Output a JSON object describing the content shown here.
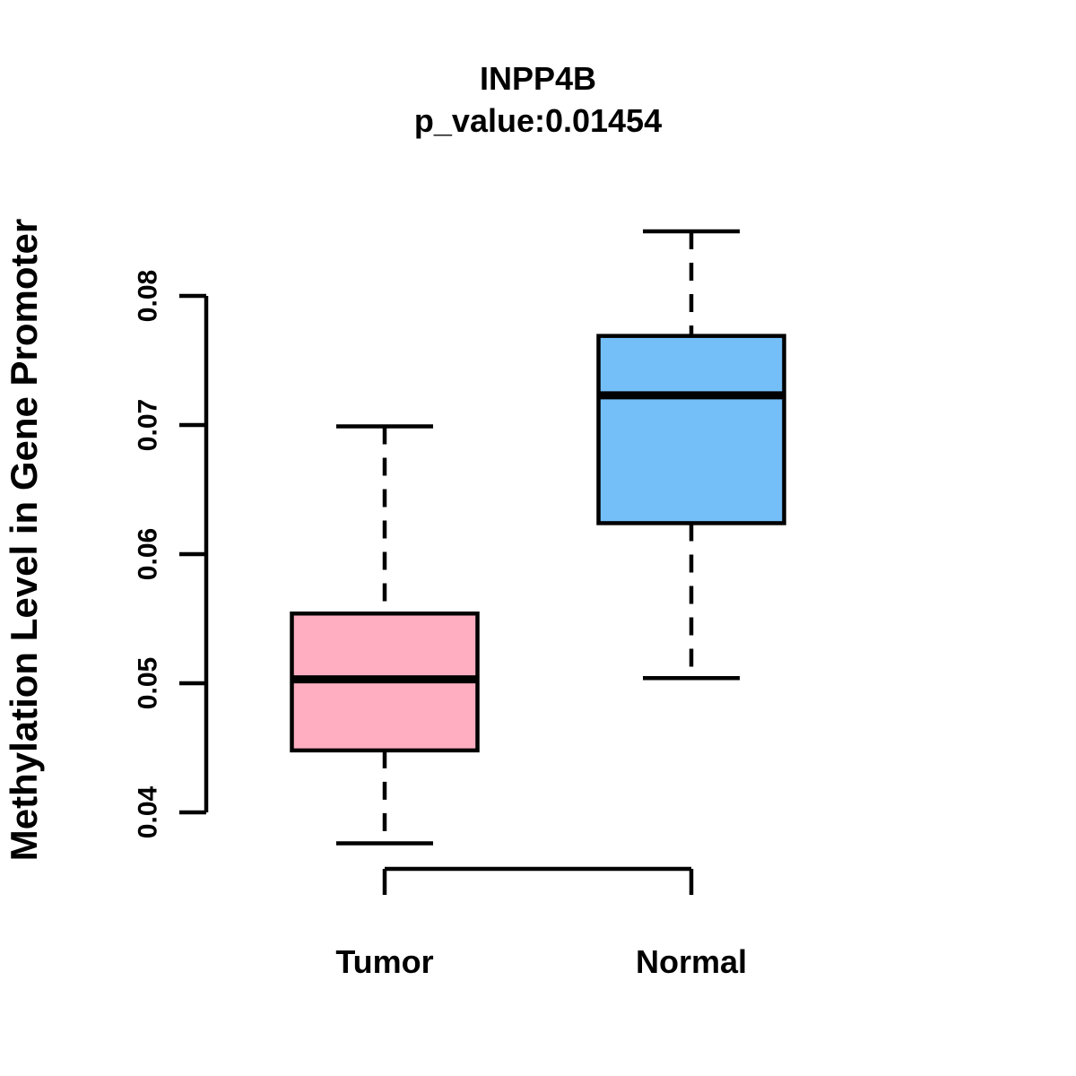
{
  "chart_data": {
    "type": "boxplot",
    "title": "INPP4B",
    "subtitle": "p_value:0.01454",
    "ylabel": "Methylation Level in Gene Promoter",
    "categories": [
      "Tumor",
      "Normal"
    ],
    "ylim": [
      0.04,
      0.08
    ],
    "yticks": [
      0.04,
      0.05,
      0.06,
      0.07,
      0.08
    ],
    "ytick_labels": [
      "0.04",
      "0.05",
      "0.06",
      "0.07",
      "0.08"
    ],
    "groups": [
      {
        "label": "Tumor",
        "color": "#FFAEC1",
        "whisker_low": 0.0376,
        "q1": 0.0448,
        "median": 0.0503,
        "q3": 0.0554,
        "whisker_high": 0.0699
      },
      {
        "label": "Normal",
        "color": "#74BFF8",
        "whisker_low": 0.0504,
        "q1": 0.0624,
        "median": 0.0723,
        "q3": 0.0769,
        "whisker_high": 0.085
      }
    ],
    "colors": {
      "line": "#000000",
      "background": "#FFFFFF"
    },
    "grid": false,
    "legend": false
  }
}
